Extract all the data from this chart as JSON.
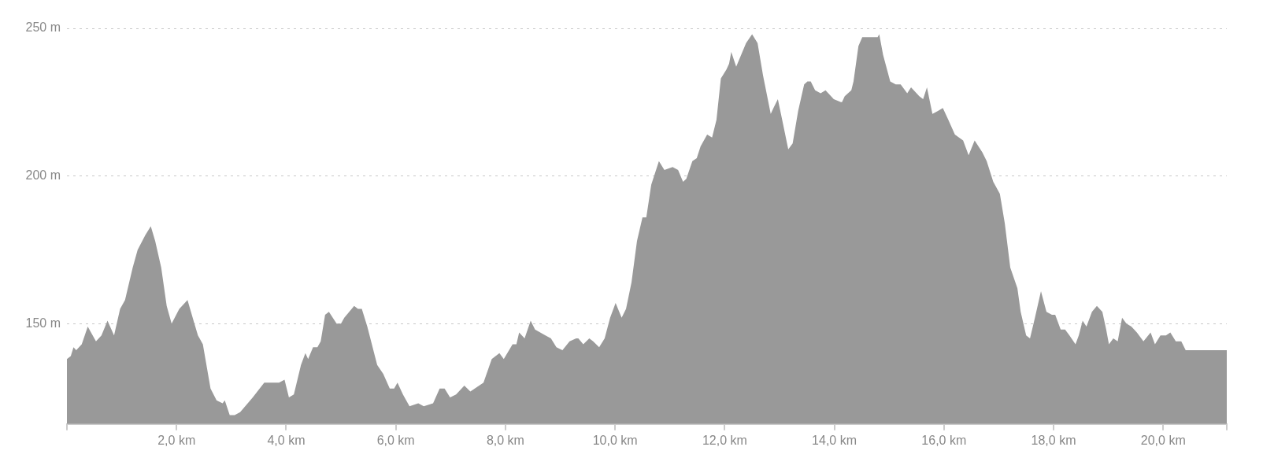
{
  "chart_data": {
    "type": "area",
    "color": "#999999",
    "x": [
      0,
      0.07,
      0.12,
      0.17,
      0.27,
      0.38,
      0.44,
      0.53,
      0.63,
      0.74,
      0.86,
      0.97,
      1.06,
      1.2,
      1.29,
      1.43,
      1.53,
      1.61,
      1.72,
      1.82,
      1.91,
      2.05,
      2.2,
      2.31,
      2.39,
      2.48,
      2.62,
      2.73,
      2.84,
      2.88,
      2.97,
      3.06,
      3.16,
      3.39,
      3.6,
      3.78,
      3.87,
      3.97,
      4.05,
      4.14,
      4.27,
      4.35,
      4.4,
      4.49,
      4.57,
      4.63,
      4.71,
      4.78,
      4.92,
      5,
      5.06,
      5.24,
      5.31,
      5.38,
      5.48,
      5.66,
      5.77,
      5.89,
      5.97,
      6.03,
      6.13,
      6.25,
      6.41,
      6.51,
      6.68,
      6.8,
      6.89,
      6.99,
      7.1,
      7.25,
      7.36,
      7.52,
      7.6,
      7.75,
      7.89,
      7.97,
      8.13,
      8.2,
      8.25,
      8.3,
      8.35,
      8.46,
      8.54,
      8.73,
      8.83,
      8.93,
      9.04,
      9.17,
      9.29,
      9.33,
      9.42,
      9.53,
      9.6,
      9.71,
      9.81,
      9.91,
      10.01,
      10.12,
      10.2,
      10.3,
      10.4,
      10.5,
      10.57,
      10.66,
      10.8,
      10.9,
      11.05,
      11.15,
      11.24,
      11.3,
      11.41,
      11.49,
      11.56,
      11.68,
      11.77,
      11.85,
      11.93,
      12.03,
      12.08,
      12.12,
      12.21,
      12.39,
      12.5,
      12.6,
      12.7,
      12.84,
      12.89,
      12.97,
      13.06,
      13.16,
      13.24,
      13.34,
      13.45,
      13.51,
      13.57,
      13.65,
      13.75,
      13.84,
      13.99,
      14.12,
      14.14,
      14.19,
      14.31,
      14.35,
      14.44,
      14.51,
      14.6,
      14.66,
      14.75,
      14.79,
      14.82,
      14.89,
      15.02,
      15.12,
      15.21,
      15.33,
      15.4,
      15.55,
      15.62,
      15.69,
      15.79,
      15.89,
      15.98,
      16.08,
      16.2,
      16.35,
      16.45,
      16.56,
      16.7,
      16.78,
      16.9,
      17.02,
      17.11,
      17.21,
      17.34,
      17.4,
      17.5,
      17.57,
      17.66,
      17.77,
      17.87,
      17.97,
      18.03,
      18.13,
      18.21,
      18.29,
      18.4,
      18.46,
      18.53,
      18.6,
      18.7,
      18.79,
      18.89,
      18.96,
      19.01,
      19.09,
      19.17,
      19.25,
      19.33,
      19.42,
      19.52,
      19.64,
      19.77,
      19.85,
      19.95,
      20.05,
      20.13,
      20.23,
      20.33,
      20.41,
      20.48,
      21.16
    ],
    "values": [
      138,
      139,
      142,
      141,
      143,
      149,
      147,
      144,
      146,
      151,
      146,
      155,
      158,
      169,
      175,
      180,
      183,
      178,
      169,
      156,
      150,
      155,
      158,
      151,
      146,
      143,
      128,
      124,
      123,
      124,
      119,
      119,
      120,
      125,
      130,
      130,
      130,
      131,
      125,
      126,
      136,
      140,
      138,
      142,
      142,
      144,
      153,
      154,
      150,
      150,
      152,
      156,
      155,
      155,
      149,
      136,
      133,
      128,
      128,
      130,
      126,
      122,
      123,
      122,
      123,
      128,
      128,
      125,
      126,
      129,
      127,
      129,
      130,
      138,
      140,
      138,
      143,
      143,
      147,
      146,
      145,
      151,
      148,
      146,
      145,
      142,
      141,
      144,
      145,
      145,
      143,
      145,
      144,
      142,
      145,
      152,
      157,
      152,
      155,
      164,
      178,
      186,
      186,
      197,
      205,
      202,
      203,
      202,
      198,
      199,
      205,
      206,
      210,
      214,
      213,
      219,
      233,
      236,
      238,
      242,
      237,
      245,
      248,
      245,
      234,
      221,
      223,
      226,
      218,
      209,
      211,
      222,
      231,
      232,
      232,
      229,
      228,
      229,
      226,
      225,
      225,
      227,
      229,
      232,
      244,
      247,
      247,
      247,
      247,
      247,
      248,
      241,
      232,
      231,
      231,
      228,
      230,
      227,
      226,
      230,
      221,
      222,
      223,
      219,
      214,
      212,
      207,
      212,
      208,
      205,
      198,
      194,
      184,
      169,
      162,
      154,
      146,
      145,
      152,
      161,
      154,
      153,
      153,
      148,
      148,
      146,
      143,
      146,
      151,
      149,
      154,
      156,
      154,
      148,
      143,
      145,
      144,
      152,
      150,
      149,
      147,
      144,
      147,
      143,
      146,
      146,
      147,
      144,
      144,
      141,
      141,
      141
    ],
    "xlim": [
      0,
      21.16
    ],
    "xticks": [
      {
        "value": 0,
        "label": null
      },
      {
        "value": 2,
        "label": "2,0 km"
      },
      {
        "value": 4,
        "label": "4,0 km"
      },
      {
        "value": 6,
        "label": "6,0 km"
      },
      {
        "value": 8,
        "label": "8,0 km"
      },
      {
        "value": 10,
        "label": "10,0 km"
      },
      {
        "value": 12,
        "label": "12,0 km"
      },
      {
        "value": 14,
        "label": "14,0 km"
      },
      {
        "value": 16,
        "label": "16,0 km"
      },
      {
        "value": 18,
        "label": "18,0 km"
      },
      {
        "value": 20,
        "label": "20,0 km"
      },
      {
        "value": 21.16,
        "label": null
      }
    ],
    "ylim": [
      116,
      250
    ],
    "yticks": [
      {
        "value": 150,
        "label": "150 m"
      },
      {
        "value": 200,
        "label": "200 m"
      },
      {
        "value": 250,
        "label": "250 m"
      }
    ],
    "grid": "y",
    "legend": false,
    "marker": "none"
  }
}
